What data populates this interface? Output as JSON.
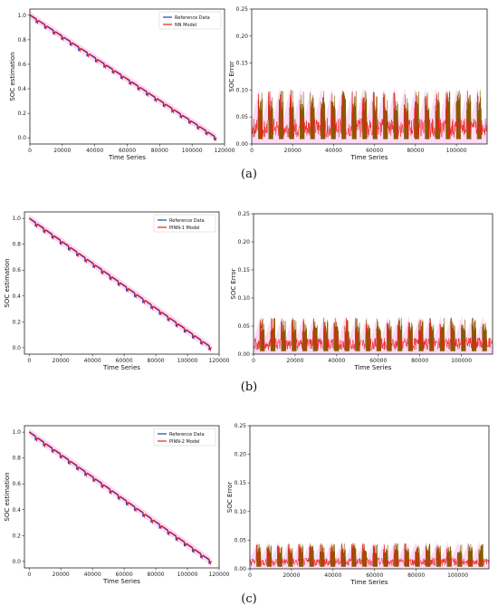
{
  "panels": [
    {
      "label": "(a)",
      "model_name": "NN Model",
      "error_max": 0.1,
      "error_base": 0.03,
      "error_tail": 0.04
    },
    {
      "label": "(b)",
      "model_name": "PINN-1 Model",
      "error_max": 0.065,
      "error_base": 0.018,
      "error_tail": 0.025
    },
    {
      "label": "(c)",
      "model_name": "PINN-2 Model",
      "error_max": 0.045,
      "error_base": 0.012,
      "error_tail": 0.015
    }
  ],
  "colors": {
    "reference": "#1f3fb0",
    "model": "#e8201c",
    "halo": "#f7b8f0",
    "axis": "#222222",
    "error": "#e8201c",
    "error_band": "#8a5a00"
  },
  "chart_data": [
    {
      "type": "line",
      "title": "",
      "xlabel": "Time Series",
      "ylabel": "SOC estimation",
      "xlim": [
        0,
        120000
      ],
      "ylim": [
        -0.05,
        1.05
      ],
      "x_ticks": [
        0,
        20000,
        40000,
        60000,
        80000,
        100000,
        120000
      ],
      "y_ticks": [
        0.0,
        0.2,
        0.4,
        0.6,
        0.8,
        1.0
      ],
      "legend_position": "top-right",
      "series": [
        {
          "name": "Reference Data",
          "x": [
            0,
            115000
          ],
          "values": [
            1.0,
            0.0
          ]
        },
        {
          "name": "NN Model",
          "x": [
            0,
            115000
          ],
          "values": [
            1.0,
            0.0
          ]
        }
      ]
    },
    {
      "type": "line",
      "title": "",
      "xlabel": "Time Series",
      "ylabel": "SOC Error",
      "xlim": [
        0,
        115000
      ],
      "ylim": [
        0,
        0.25
      ],
      "x_ticks": [
        0,
        20000,
        40000,
        60000,
        80000,
        100000
      ],
      "y_ticks": [
        0.0,
        0.05,
        0.1,
        0.15,
        0.2,
        0.25
      ],
      "series": [
        {
          "name": "",
          "approx_peak": 0.1
        }
      ]
    },
    {
      "type": "line",
      "title": "",
      "xlabel": "Time Series",
      "ylabel": "SOC estimation",
      "xlim": [
        -3000,
        120000
      ],
      "ylim": [
        -0.05,
        1.05
      ],
      "x_ticks": [
        0,
        20000,
        40000,
        60000,
        80000,
        100000,
        120000
      ],
      "y_ticks": [
        0.0,
        0.2,
        0.4,
        0.6,
        0.8,
        1.0
      ],
      "legend_position": "top-right",
      "series": [
        {
          "name": "Reference Data",
          "x": [
            0,
            115000
          ],
          "values": [
            1.0,
            0.0
          ]
        },
        {
          "name": "PINN-1 Model",
          "x": [
            0,
            115000
          ],
          "values": [
            1.0,
            0.0
          ]
        }
      ]
    },
    {
      "type": "line",
      "title": "",
      "xlabel": "Time Series",
      "ylabel": "SOC Error",
      "xlim": [
        0,
        115000
      ],
      "ylim": [
        0,
        0.25
      ],
      "x_ticks": [
        0,
        20000,
        40000,
        60000,
        80000,
        100000
      ],
      "y_ticks": [
        0.0,
        0.05,
        0.1,
        0.15,
        0.2,
        0.25
      ],
      "series": [
        {
          "name": "",
          "approx_peak": 0.065
        }
      ]
    },
    {
      "type": "line",
      "title": "",
      "xlabel": "Time Series",
      "ylabel": "SOC estimation",
      "xlim": [
        -3000,
        120000
      ],
      "ylim": [
        -0.05,
        1.05
      ],
      "x_ticks": [
        0,
        20000,
        40000,
        60000,
        80000,
        100000,
        120000
      ],
      "y_ticks": [
        0.0,
        0.2,
        0.4,
        0.6,
        0.8,
        1.0
      ],
      "legend_position": "top-right",
      "series": [
        {
          "name": "Reference Data",
          "x": [
            0,
            115000
          ],
          "values": [
            1.0,
            0.0
          ]
        },
        {
          "name": "PINN-2 Model",
          "x": [
            0,
            115000
          ],
          "values": [
            1.0,
            0.0
          ]
        }
      ]
    },
    {
      "type": "line",
      "title": "",
      "xlabel": "Time Series",
      "ylabel": "SOC Error",
      "xlim": [
        0,
        115000
      ],
      "ylim": [
        0,
        0.25
      ],
      "x_ticks": [
        0,
        20000,
        40000,
        60000,
        80000,
        100000
      ],
      "y_ticks": [
        0.0,
        0.05,
        0.1,
        0.15,
        0.2,
        0.25
      ],
      "series": [
        {
          "name": "",
          "approx_peak": 0.045
        }
      ]
    }
  ]
}
